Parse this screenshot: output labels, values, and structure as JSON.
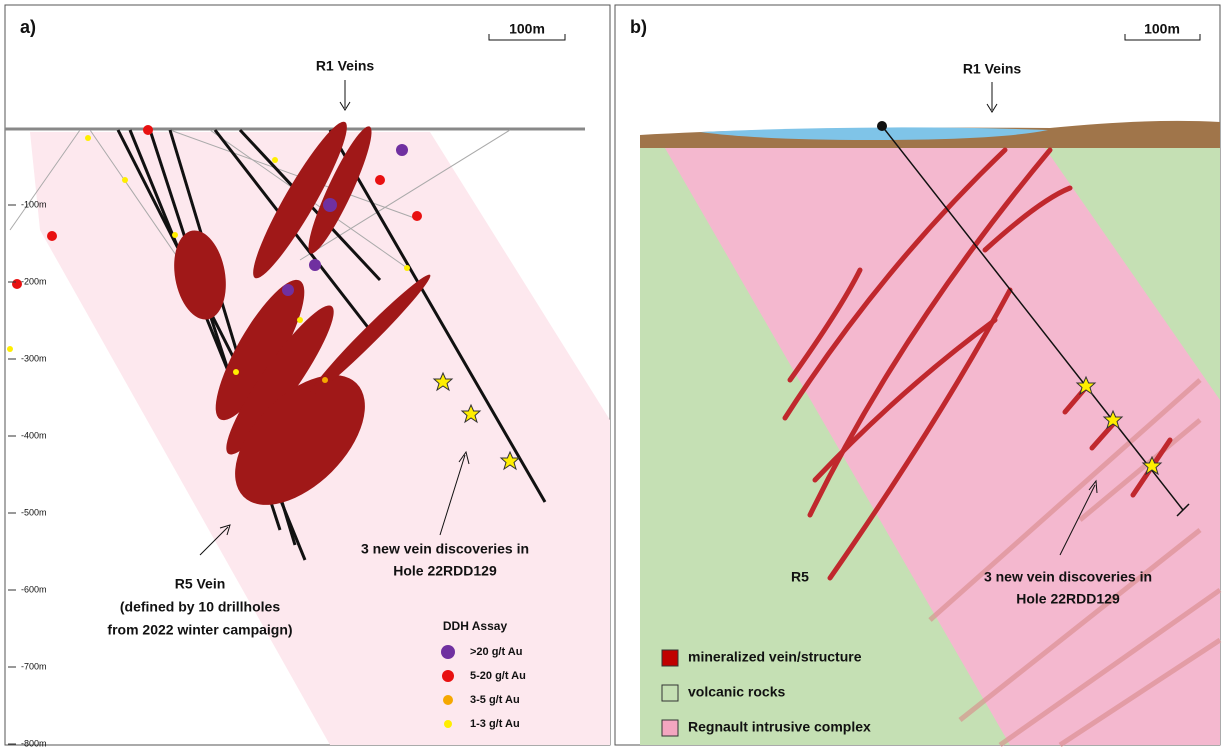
{
  "panel_a": {
    "label": "a)",
    "scale": "100m",
    "callout_top": "R1 Veins",
    "depth_labels": [
      "-100m",
      "-200m",
      "-300m",
      "-400m",
      "-500m",
      "-600m",
      "-700m",
      "-800m"
    ],
    "discovery_note": [
      "3 new vein discoveries in",
      "Hole 22RDD129"
    ],
    "vein_note": [
      "R5 Vein",
      "(defined by 10 drillholes",
      "from 2022 winter campaign)"
    ],
    "legend_title": "DDH Assay",
    "legend": [
      {
        "label": ">20 g/t Au",
        "color": "#7030a0"
      },
      {
        "label": "5-20 g/t Au",
        "color": "#e81010"
      },
      {
        "label": "3-5 g/t Au",
        "color": "#f5a800"
      },
      {
        "label": "1-3 g/t Au",
        "color": "#ffee00"
      }
    ]
  },
  "panel_b": {
    "label": "b)",
    "scale": "100m",
    "callout_top": "R1 Veins",
    "vein_label": "R5",
    "discovery_note": [
      "3 new vein discoveries in",
      "Hole 22RDD129"
    ],
    "legend": [
      {
        "label": "mineralized vein/structure",
        "color": "#c00000"
      },
      {
        "label": "volcanic rocks",
        "color": "#c5e0b4"
      },
      {
        "label": "Regnault intrusive complex",
        "color": "#f4a6c0"
      }
    ]
  }
}
